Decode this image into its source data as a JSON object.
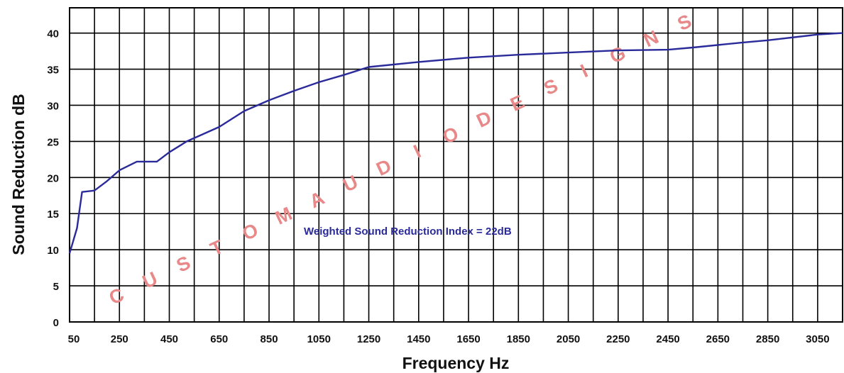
{
  "chart_data": {
    "type": "line",
    "title": "",
    "xlabel": "Frequency Hz",
    "ylabel": "Sound Reduction dB",
    "x_ticks": [
      "50",
      "250",
      "450",
      "650",
      "850",
      "1050",
      "1250",
      "1450",
      "1650",
      "1850",
      "2050",
      "2250",
      "2450",
      "2650",
      "2850",
      "3050"
    ],
    "y_ticks": [
      "0",
      "5",
      "10",
      "15",
      "20",
      "25",
      "30",
      "35",
      "40"
    ],
    "xlim": [
      50,
      3150
    ],
    "ylim": [
      0,
      40
    ],
    "grid": true,
    "series": [
      {
        "color": "#2a2a9a",
        "points": [
          [
            50,
            9.5
          ],
          [
            80,
            13
          ],
          [
            100,
            18
          ],
          [
            150,
            18.2
          ],
          [
            200,
            19.5
          ],
          [
            250,
            21
          ],
          [
            320,
            22.2
          ],
          [
            400,
            22.2
          ],
          [
            450,
            23.5
          ],
          [
            520,
            25
          ],
          [
            650,
            27
          ],
          [
            750,
            29.2
          ],
          [
            850,
            30.7
          ],
          [
            950,
            32
          ],
          [
            1050,
            33.2
          ],
          [
            1150,
            34.2
          ],
          [
            1250,
            35.3
          ],
          [
            1450,
            36
          ],
          [
            1650,
            36.6
          ],
          [
            1850,
            37
          ],
          [
            2050,
            37.3
          ],
          [
            2250,
            37.6
          ],
          [
            2450,
            37.7
          ],
          [
            2550,
            38
          ],
          [
            2750,
            38.7
          ],
          [
            2850,
            39
          ],
          [
            3050,
            39.8
          ],
          [
            3150,
            40
          ]
        ]
      }
    ],
    "annotations": [
      {
        "text": "Weighted Sound Reduction Index = 22dB",
        "color": "#2a2a9a"
      }
    ],
    "watermark": {
      "text": "CUSTOM AUDIO DESIGNS",
      "color": "#e88888"
    }
  }
}
